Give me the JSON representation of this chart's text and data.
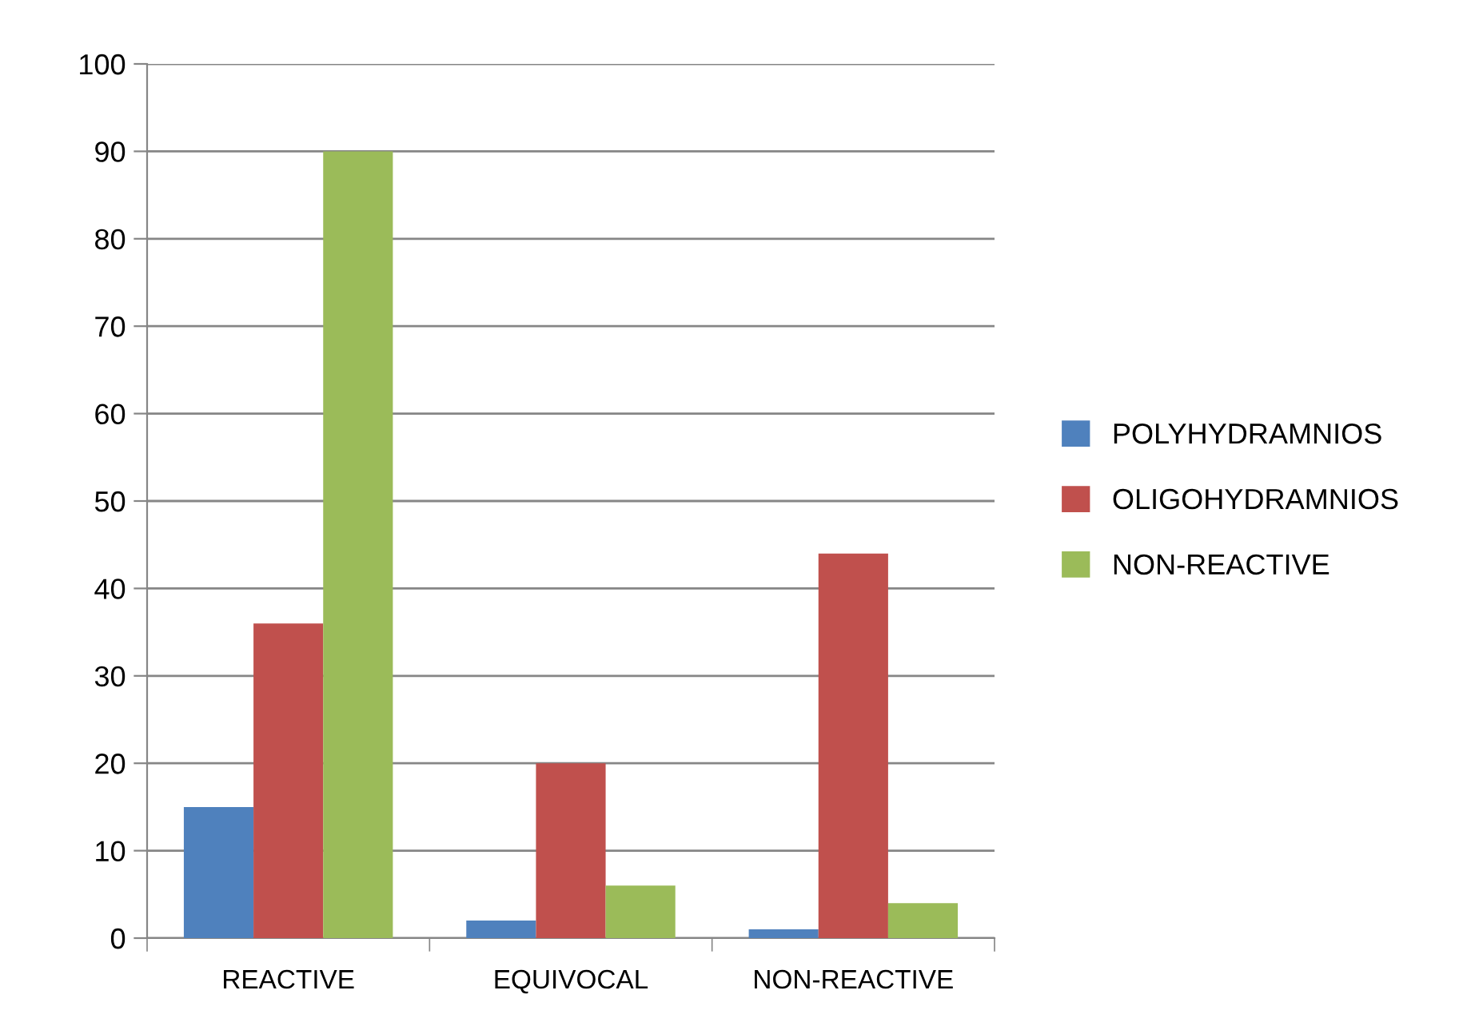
{
  "chart_data": {
    "type": "bar",
    "categories": [
      "REACTIVE",
      "EQUIVOCAL",
      "NON-REACTIVE"
    ],
    "series": [
      {
        "name": "POLYHYDRAMNIOS",
        "color": "#4f81bd",
        "values": [
          15,
          2,
          1
        ]
      },
      {
        "name": "OLIGOHYDRAMNIOS",
        "color": "#c0504d",
        "values": [
          36,
          20,
          44
        ]
      },
      {
        "name": "NON-REACTIVE",
        "color": "#9bbb59",
        "values": [
          90,
          6,
          4
        ]
      }
    ],
    "ylim": [
      0,
      100
    ],
    "yticks": [
      0,
      10,
      20,
      30,
      40,
      50,
      60,
      70,
      80,
      90,
      100
    ],
    "grid": "y",
    "legend": "right"
  }
}
